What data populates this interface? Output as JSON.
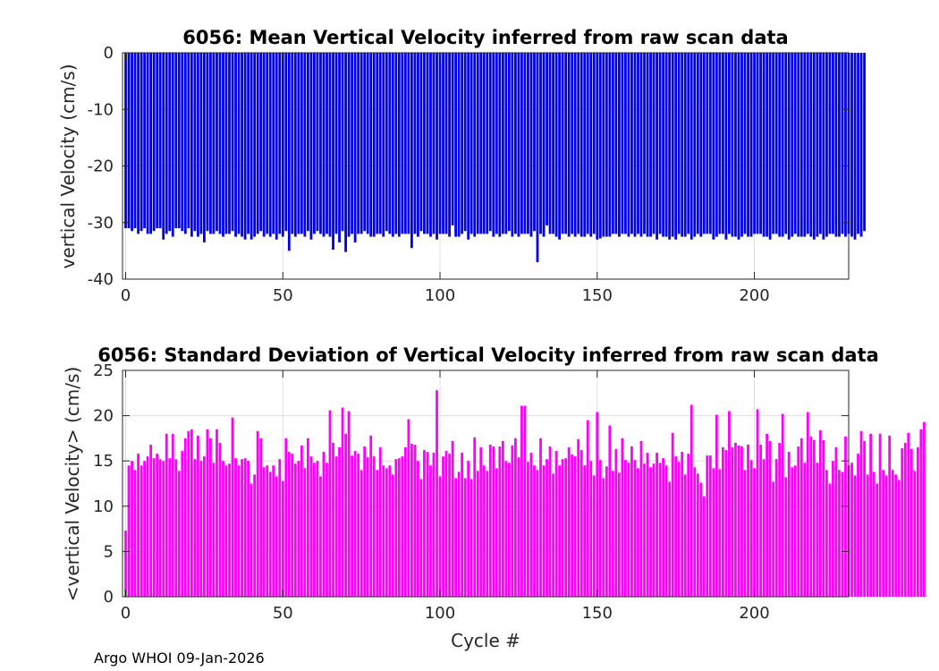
{
  "chart_data": [
    {
      "type": "bar",
      "title": "6056: Mean Vertical Velocity inferred from raw scan data",
      "xlabel": "",
      "ylabel": "vertical Velocity (cm/s)",
      "xlim": [
        -1,
        230
      ],
      "ylim": [
        -40,
        0
      ],
      "xticks": [
        0,
        50,
        100,
        150,
        200
      ],
      "yticks": [
        0,
        -10,
        -20,
        -30,
        -40
      ],
      "grid": true,
      "bar_color": "#0000ee",
      "x_start": 0,
      "values": [
        -31,
        -31,
        -31.5,
        -31,
        -32,
        -31.5,
        -31,
        -32,
        -32,
        -31.5,
        -31,
        -31,
        -33,
        -32,
        -31.5,
        -32.5,
        -31,
        -31,
        -31.5,
        -32,
        -31,
        -32.5,
        -31.5,
        -32.5,
        -32,
        -33.5,
        -31.5,
        -32,
        -32,
        -31.5,
        -32,
        -32.5,
        -32,
        -32,
        -31.5,
        -32.5,
        -32,
        -32.5,
        -33,
        -32,
        -33,
        -32.5,
        -32,
        -31.5,
        -32.5,
        -32,
        -32.5,
        -32,
        -33,
        -32,
        -32.5,
        -31.5,
        -35,
        -32,
        -32.5,
        -32,
        -32,
        -32.5,
        -31.5,
        -33,
        -32,
        -31.5,
        -32,
        -32.5,
        -32,
        -32.5,
        -34.8,
        -32,
        -33.5,
        -31.5,
        -35.2,
        -32.5,
        -32,
        -33.5,
        -32,
        -32,
        -31.5,
        -32,
        -32.5,
        -32.5,
        -32,
        -32,
        -32.5,
        -31.5,
        -32,
        -32.5,
        -32,
        -32.5,
        -32,
        -32,
        -32,
        -34.5,
        -32,
        -32.5,
        -31.5,
        -32,
        -32,
        -32.5,
        -32,
        -33,
        -32,
        -32,
        -32,
        -32.5,
        -30.5,
        -32.5,
        -32.5,
        -32,
        -31.5,
        -33,
        -32,
        -32.5,
        -32,
        -32,
        -32,
        -32,
        -31.5,
        -32.5,
        -32,
        -32.5,
        -32,
        -32,
        -31.5,
        -32.5,
        -32,
        -32.5,
        -32,
        -32,
        -32,
        -32.5,
        -31.5,
        -37,
        -32,
        -32.5,
        -30.5,
        -32,
        -32,
        -32.5,
        -33,
        -32,
        -32,
        -32.5,
        -32,
        -32.5,
        -32,
        -32.5,
        -32.5,
        -32,
        -32.5,
        -32,
        -33,
        -32.8,
        -32.5,
        -32.5,
        -32.5,
        -32,
        -32,
        -32.5,
        -32,
        -32,
        -32.5,
        -32,
        -32.5,
        -32,
        -32.5,
        -32,
        -32.5,
        -32.5,
        -32,
        -33,
        -32,
        -32.5,
        -32.5,
        -33,
        -32.5,
        -33,
        -32,
        -32.5,
        -32.5,
        -32,
        -33,
        -32.5,
        -32,
        -32.5,
        -32,
        -32,
        -32,
        -33,
        -32.5,
        -32,
        -32,
        -33,
        -32,
        -32.5,
        -32.5,
        -33,
        -32.5,
        -32,
        -32.5,
        -32.5,
        -32,
        -32,
        -32,
        -32.5,
        -32.5,
        -33,
        -32,
        -32,
        -32.5,
        -32.5,
        -32,
        -33,
        -32.5,
        -32,
        -32.5,
        -32.5,
        -32.5,
        -32,
        -32.5,
        -33,
        -32.5,
        -32,
        -33,
        -32.5,
        -32,
        -32,
        -32.5,
        -32.5,
        -32,
        -32.5,
        -32,
        -32.5,
        -33,
        -32,
        -32.5,
        -31.5
      ]
    },
    {
      "type": "bar",
      "title": "6056: Standard Deviation of Vertical Velocity inferred from raw scan data",
      "xlabel": "Cycle #",
      "ylabel": "<vertical Velocity> (cm/s)",
      "xlim": [
        -1,
        230
      ],
      "ylim": [
        0,
        25
      ],
      "xticks": [
        0,
        50,
        100,
        150,
        200
      ],
      "yticks": [
        0,
        5,
        10,
        15,
        20,
        25
      ],
      "grid": true,
      "bar_color": "#ff00ff",
      "x_start": 0,
      "values": [
        7.3,
        14.5,
        15,
        14,
        15.8,
        14.5,
        15,
        15.5,
        16.8,
        15.3,
        15.8,
        15.2,
        15,
        18,
        15.3,
        18,
        15.2,
        13.9,
        16.1,
        17.5,
        18.3,
        18.5,
        15.2,
        17.8,
        15,
        15.5,
        18.5,
        17.5,
        14.8,
        18.5,
        17,
        15,
        14.5,
        14.7,
        19.8,
        15.3,
        14.5,
        15.2,
        15.3,
        15,
        12.5,
        13.5,
        18.3,
        17.5,
        14.3,
        14.5,
        13.8,
        14.5,
        13.3,
        15.2,
        12.8,
        17.5,
        16,
        15.8,
        14.7,
        15,
        16.7,
        14.2,
        17.5,
        15.5,
        14.8,
        15,
        13.3,
        16,
        14.8,
        20.6,
        17,
        15.5,
        16.5,
        20.9,
        18,
        20.5,
        15.6,
        16.1,
        15.8,
        14,
        16.6,
        15.4,
        17.8,
        15.5,
        14,
        16.5,
        14.5,
        14.2,
        14.5,
        13.5,
        15.2,
        15.3,
        15.5,
        16.5,
        19.6,
        16.9,
        16.8,
        15,
        13,
        16.2,
        16,
        14.5,
        15.9,
        22.8,
        13.3,
        15.5,
        16.1,
        15.8,
        17.2,
        13.1,
        13.8,
        15.9,
        13.1,
        15,
        13,
        17.6,
        13.9,
        16.5,
        14.5,
        13.9,
        16.8,
        16.6,
        14.2,
        16.6,
        17.2,
        15,
        14.8,
        16.7,
        17.5,
        15.4,
        21.1,
        21.1,
        14.9,
        15.9,
        14.5,
        14,
        17.5,
        14.5,
        15.2,
        16.6,
        13.6,
        16.1,
        14.5,
        15.2,
        15.3,
        16.5,
        15.7,
        15.5,
        17.4,
        16.2,
        14.5,
        19.5,
        15,
        13.4,
        20.4,
        15.1,
        13.1,
        14.4,
        18.9,
        13.9,
        16.3,
        13.7,
        17.5,
        15.1,
        14.8,
        16.6,
        15.1,
        14.2,
        17.2,
        14.7,
        15.9,
        14.3,
        14.7,
        15.9,
        14.8,
        15.3,
        14.5,
        12.7,
        18.1,
        15.5,
        14.9,
        16,
        13.5,
        15.8,
        21.2,
        14.3,
        13.6,
        12.6,
        11.1,
        15.6,
        15.6,
        14.2,
        20.1,
        14.1,
        16.5,
        16.2,
        20.5,
        16.5,
        17,
        16.7,
        16.6,
        14,
        16.8,
        15.1,
        14.2,
        20.7,
        16.8,
        15.2,
        18,
        17.2,
        12.7,
        15.2,
        17,
        20.2,
        13.2,
        16,
        14.3,
        14.5,
        16.6,
        17.5,
        14.8,
        20.4,
        17.7,
        17.3,
        14.8,
        18.4,
        17.3,
        14,
        12.5,
        15,
        16.5,
        14,
        13.8,
        17.7,
        14.5,
        14.8,
        13.4,
        15.8,
        18.3,
        17.2,
        13.5,
        18,
        13.8,
        12.5,
        18,
        14,
        13.4,
        17.8,
        14,
        13.5,
        12.9,
        16.4,
        17,
        18.1,
        16.3,
        13.9,
        16.5,
        18.5,
        19.3
      ]
    }
  ],
  "footer_text": "Argo WHOI 09-Jan-2026"
}
